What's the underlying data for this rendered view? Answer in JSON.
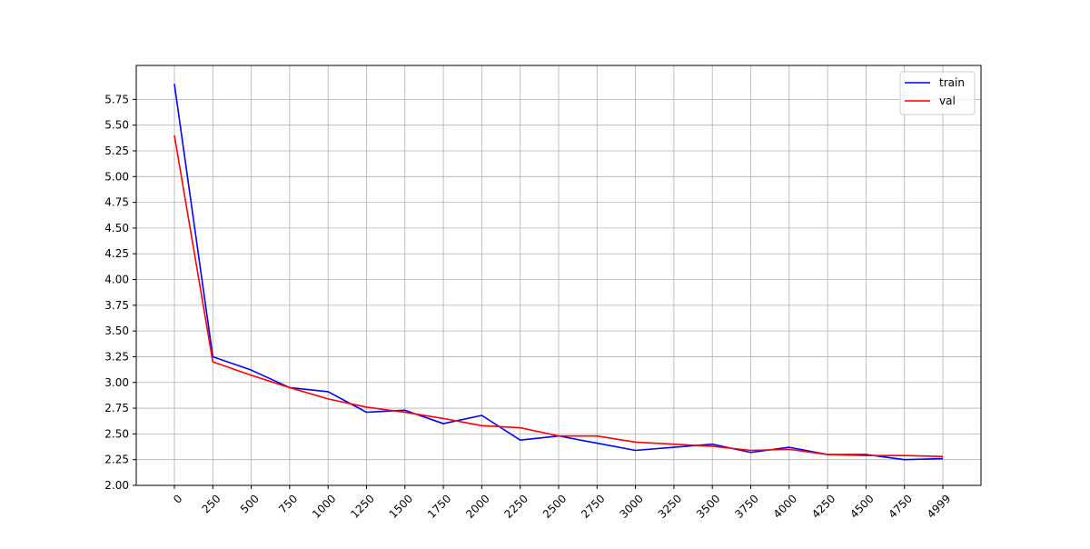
{
  "chart_data": {
    "type": "line",
    "title": "",
    "xlabel": "",
    "ylabel": "",
    "x": [
      0,
      250,
      500,
      750,
      1000,
      1250,
      1500,
      1750,
      2000,
      2250,
      2500,
      2750,
      3000,
      3250,
      3500,
      3750,
      4000,
      4250,
      4500,
      4750,
      4999
    ],
    "x_tick_labels": [
      "0",
      "250",
      "500",
      "750",
      "1000",
      "1250",
      "1500",
      "1750",
      "2000",
      "2250",
      "2500",
      "2750",
      "3000",
      "3250",
      "3500",
      "3750",
      "4000",
      "4250",
      "4500",
      "4750",
      "4999"
    ],
    "y_tick_labels": [
      "2.00",
      "2.25",
      "2.50",
      "2.75",
      "3.00",
      "3.25",
      "3.50",
      "3.75",
      "4.00",
      "4.25",
      "4.50",
      "4.75",
      "5.00",
      "5.25",
      "5.50",
      "5.75"
    ],
    "y_ticks": [
      2.0,
      2.25,
      2.5,
      2.75,
      3.0,
      3.25,
      3.5,
      3.75,
      4.0,
      4.25,
      4.5,
      4.75,
      5.0,
      5.25,
      5.5,
      5.75
    ],
    "ylim": [
      2.0,
      6.08
    ],
    "grid": true,
    "legend_position": "top-right",
    "x_tick_rotation": 45,
    "series": [
      {
        "name": "train",
        "color": "#0000ff",
        "values": [
          5.9,
          3.25,
          3.12,
          2.95,
          2.91,
          2.71,
          2.73,
          2.6,
          2.68,
          2.44,
          2.48,
          2.41,
          2.34,
          2.37,
          2.4,
          2.32,
          2.37,
          2.3,
          2.3,
          2.25,
          2.26
        ]
      },
      {
        "name": "val",
        "color": "#ff0000",
        "values": [
          5.4,
          3.2,
          3.07,
          2.95,
          2.84,
          2.76,
          2.71,
          2.65,
          2.58,
          2.56,
          2.48,
          2.48,
          2.42,
          2.4,
          2.38,
          2.34,
          2.35,
          2.3,
          2.29,
          2.29,
          2.28
        ]
      }
    ]
  }
}
